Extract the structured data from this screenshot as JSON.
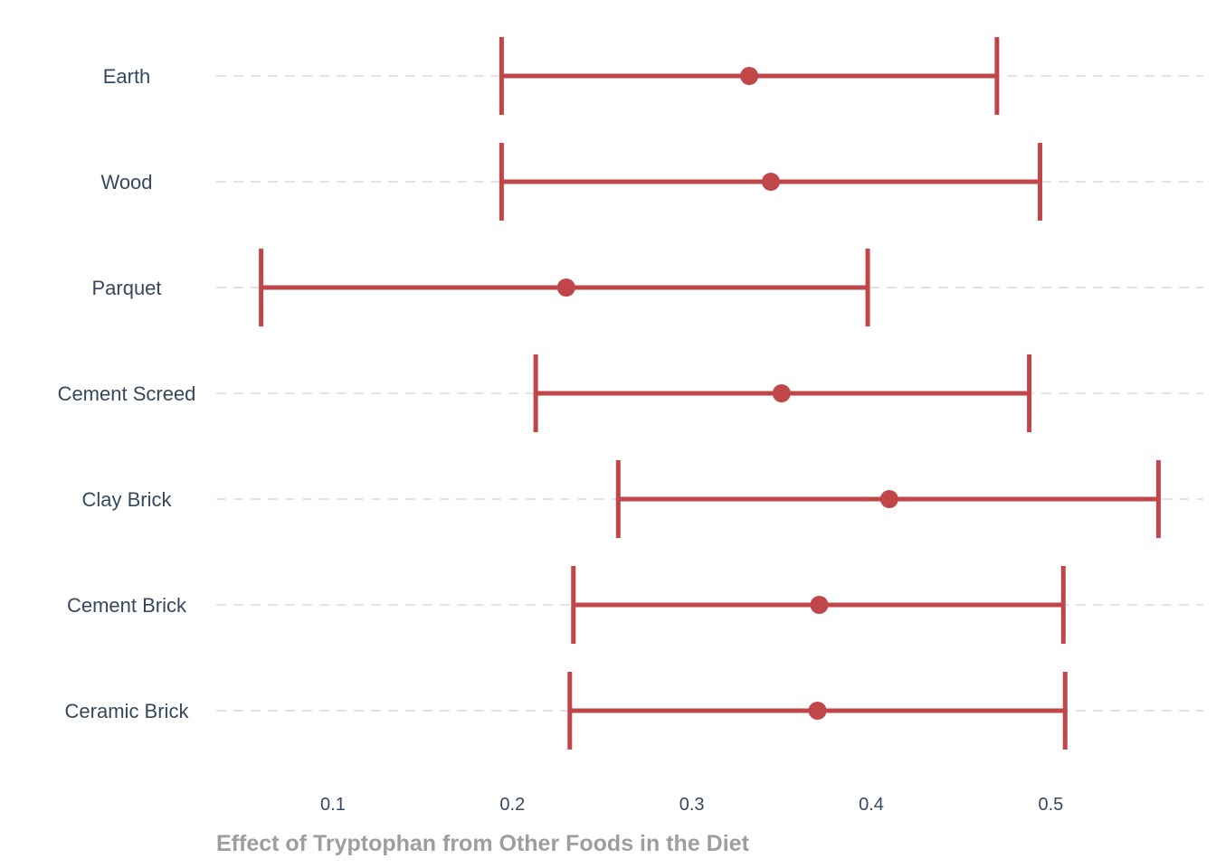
{
  "chart_data": {
    "type": "errorbar",
    "title": "",
    "xlabel": "Effect of Tryptophan from Other Foods in the Diet",
    "ylabel": "",
    "xlim": [
      0.035,
      0.585
    ],
    "xticks": [
      0.1,
      0.2,
      0.3,
      0.4,
      0.5
    ],
    "xtick_labels": [
      "0.1",
      "0.2",
      "0.3",
      "0.4",
      "0.5"
    ],
    "grid": "horizontal dashed",
    "color": "#c0464a",
    "categories": [
      "Earth",
      "Wood",
      "Parquet",
      "Cement Screed",
      "Clay Brick",
      "Cement Brick",
      "Ceramic Brick"
    ],
    "estimates": [
      0.332,
      0.344,
      0.23,
      0.35,
      0.41,
      0.371,
      0.37
    ],
    "lower": [
      0.194,
      0.194,
      0.06,
      0.213,
      0.259,
      0.234,
      0.232
    ],
    "upper": [
      0.47,
      0.494,
      0.398,
      0.488,
      0.56,
      0.507,
      0.508
    ]
  }
}
